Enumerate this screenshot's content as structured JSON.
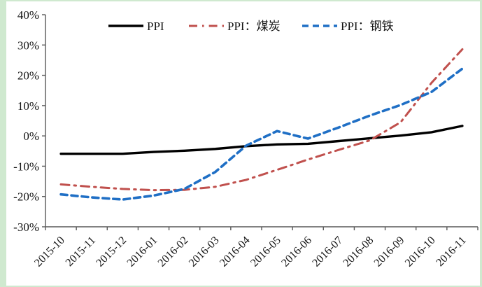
{
  "frame": {
    "border_color": "#cfe9cf",
    "background": "#ffffff"
  },
  "chart_data": {
    "type": "line",
    "title": "",
    "xlabel": "",
    "ylabel": "",
    "grid": false,
    "legend_position": "top-center",
    "ylim": [
      -30,
      40
    ],
    "ytick_step": 10,
    "ytick_labels": [
      "40%",
      "30%",
      "20%",
      "10%",
      "0%",
      "-10%",
      "-20%",
      "-30%"
    ],
    "categories": [
      "2015-10",
      "2015-11",
      "2015-12",
      "2016-01",
      "2016-02",
      "2016-03",
      "2016-04",
      "2016-05",
      "2016-06",
      "2016-07",
      "2016-08",
      "2016-09",
      "2016-10",
      "2016-11"
    ],
    "series": [
      {
        "name": "PPI",
        "color": "#000000",
        "style": "solid",
        "values": [
          -5.9,
          -5.9,
          -5.9,
          -5.3,
          -4.9,
          -4.3,
          -3.4,
          -2.8,
          -2.6,
          -1.7,
          -0.8,
          0.1,
          1.2,
          3.3
        ]
      },
      {
        "name": "PPI：煤炭",
        "color": "#c0504d",
        "style": "dashdot",
        "values": [
          -16.0,
          -16.8,
          -17.5,
          -17.9,
          -17.8,
          -16.8,
          -14.5,
          -11.2,
          -7.8,
          -4.6,
          -1.5,
          4.5,
          17.5,
          28.6
        ]
      },
      {
        "name": "PPI：钢铁",
        "color": "#1f6fc5",
        "style": "dashed",
        "values": [
          -19.3,
          -20.3,
          -21.0,
          -19.7,
          -17.5,
          -11.9,
          -3.2,
          1.6,
          -0.9,
          2.8,
          6.7,
          10.2,
          14.5,
          22.2
        ]
      }
    ],
    "axis_color": "#595959",
    "text_color": "#141414"
  }
}
